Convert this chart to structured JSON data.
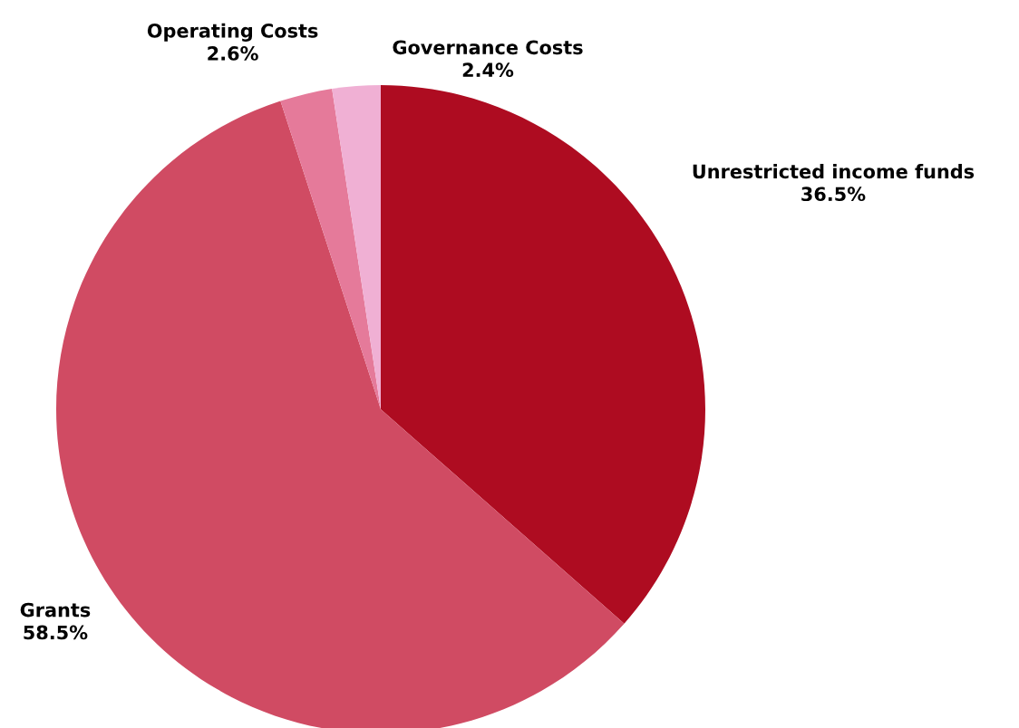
{
  "chart_data": {
    "type": "pie",
    "categories": [
      "Unrestricted income funds",
      "Grants",
      "Operating Costs",
      "Governance Costs"
    ],
    "values": [
      36.5,
      58.5,
      2.6,
      2.4
    ],
    "value_labels": [
      "36.5%",
      "58.5%",
      "2.6%",
      "2.4%"
    ],
    "colors": [
      "#ae0c21",
      "#d04b63",
      "#e57a9a",
      "#f0b0d4"
    ]
  }
}
